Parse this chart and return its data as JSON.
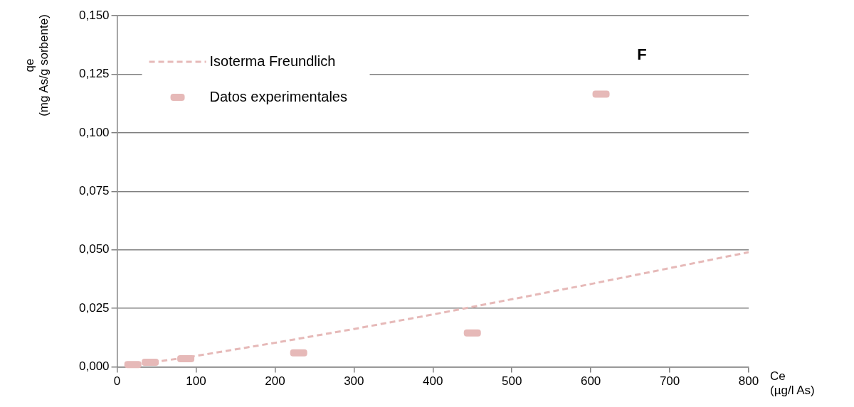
{
  "chart_data": {
    "type": "scatter",
    "xlabel": "Ce\n(µg/l As)",
    "ylabel": "qe\n(mg As/g sorbente)",
    "annotations": [
      "F"
    ],
    "xlim": [
      0,
      800
    ],
    "xticks": [
      0,
      100,
      200,
      300,
      400,
      500,
      600,
      700,
      800
    ],
    "ylim": [
      0,
      0.15
    ],
    "yticks": [
      {
        "value": 0,
        "label": "0,000"
      },
      {
        "value": 0.025,
        "label": "0,025"
      },
      {
        "value": 0.05,
        "label": "0,050"
      },
      {
        "value": 0.075,
        "label": "0,075"
      },
      {
        "value": 0.1,
        "label": "0,100"
      },
      {
        "value": 0.125,
        "label": "0,125"
      },
      {
        "value": 0.15,
        "label": "0,150"
      }
    ],
    "grid": "y",
    "legend": "top left",
    "series": [
      {
        "name": "Isoterma Freundlich",
        "type": "line",
        "line_style": "dashed",
        "marker": "none",
        "color": "#e6b9b8",
        "x": [
          10,
          50,
          100,
          200,
          300,
          400,
          500,
          600,
          700,
          800
        ],
        "values": [
          0.0004,
          0.0022,
          0.0047,
          0.0103,
          0.0162,
          0.0224,
          0.0289,
          0.0354,
          0.0422,
          0.049
        ]
      },
      {
        "name": "Datos experimentales",
        "marker": "square",
        "color": "#e6b9b8",
        "x": [
          20,
          42,
          87,
          230,
          450,
          613
        ],
        "values": [
          0.001,
          0.002,
          0.0035,
          0.006,
          0.0145,
          0.1165
        ]
      }
    ]
  }
}
